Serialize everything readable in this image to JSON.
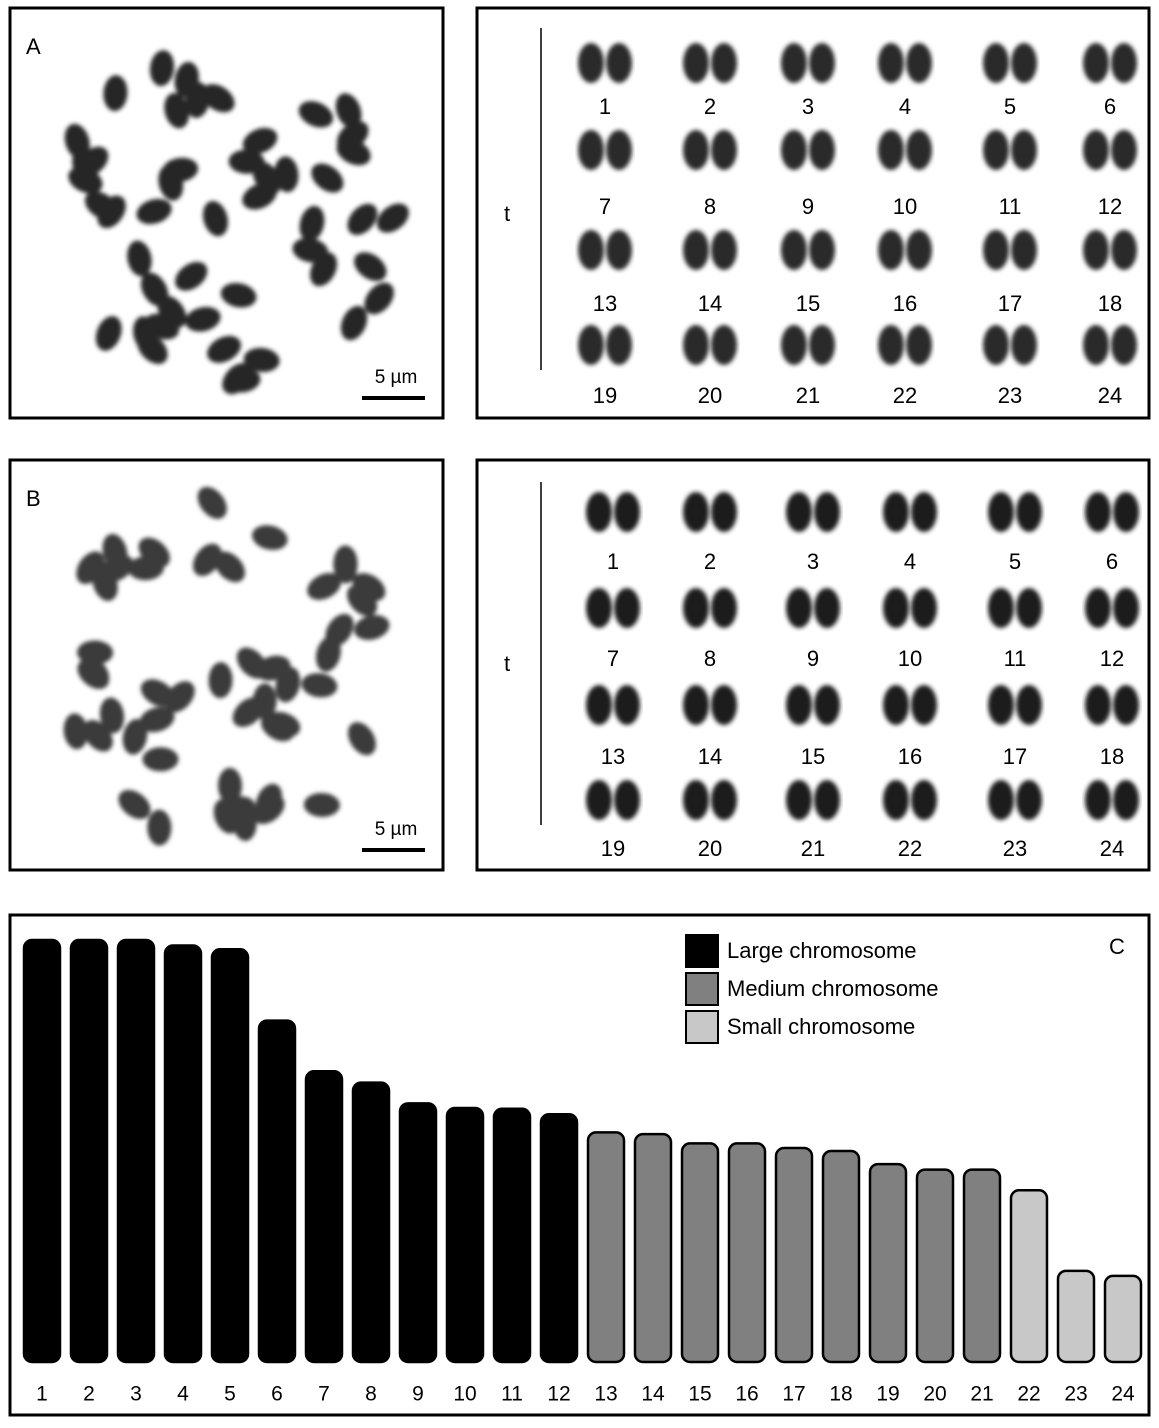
{
  "panels": [
    {
      "label": "A",
      "scale_bar": "5 µm",
      "karyotype": {
        "group": "t",
        "chromosomes": [
          1,
          2,
          3,
          4,
          5,
          6,
          7,
          8,
          9,
          10,
          11,
          12,
          13,
          14,
          15,
          16,
          17,
          18,
          19,
          20,
          21,
          22,
          23,
          24
        ]
      }
    },
    {
      "label": "B",
      "scale_bar": "5 µm",
      "karyotype": {
        "group": "t",
        "chromosomes": [
          1,
          2,
          3,
          4,
          5,
          6,
          7,
          8,
          9,
          10,
          11,
          12,
          13,
          14,
          15,
          16,
          17,
          18,
          19,
          20,
          21,
          22,
          23,
          24
        ]
      }
    }
  ],
  "chart_data": {
    "type": "bar",
    "label": "C",
    "categories": [
      "1",
      "2",
      "3",
      "4",
      "5",
      "6",
      "7",
      "8",
      "9",
      "10",
      "11",
      "12",
      "13",
      "14",
      "15",
      "16",
      "17",
      "18",
      "19",
      "20",
      "21",
      "22",
      "23",
      "24"
    ],
    "series": [
      {
        "name": "Large chromosome",
        "color": "#000000",
        "values": [
          100,
          100,
          100,
          98.7,
          97.8,
          80.9,
          68.9,
          66.2,
          61.3,
          60.2,
          60,
          58.7,
          null,
          null,
          null,
          null,
          null,
          null,
          null,
          null,
          null,
          null,
          null,
          null
        ]
      },
      {
        "name": "Medium chromosome",
        "color": "#808080",
        "values": [
          null,
          null,
          null,
          null,
          null,
          null,
          null,
          null,
          null,
          null,
          null,
          null,
          54.4,
          54,
          51.8,
          51.8,
          50.7,
          50,
          46.9,
          45.6,
          45.6,
          null,
          null,
          null
        ]
      },
      {
        "name": "Small chromosome",
        "color": "#c8c8c8",
        "values": [
          null,
          null,
          null,
          null,
          null,
          null,
          null,
          null,
          null,
          null,
          null,
          null,
          null,
          null,
          null,
          null,
          null,
          null,
          null,
          null,
          null,
          40.7,
          21.6,
          20.4
        ]
      }
    ],
    "ylim": [
      0,
      100
    ],
    "legend": "top-right"
  }
}
